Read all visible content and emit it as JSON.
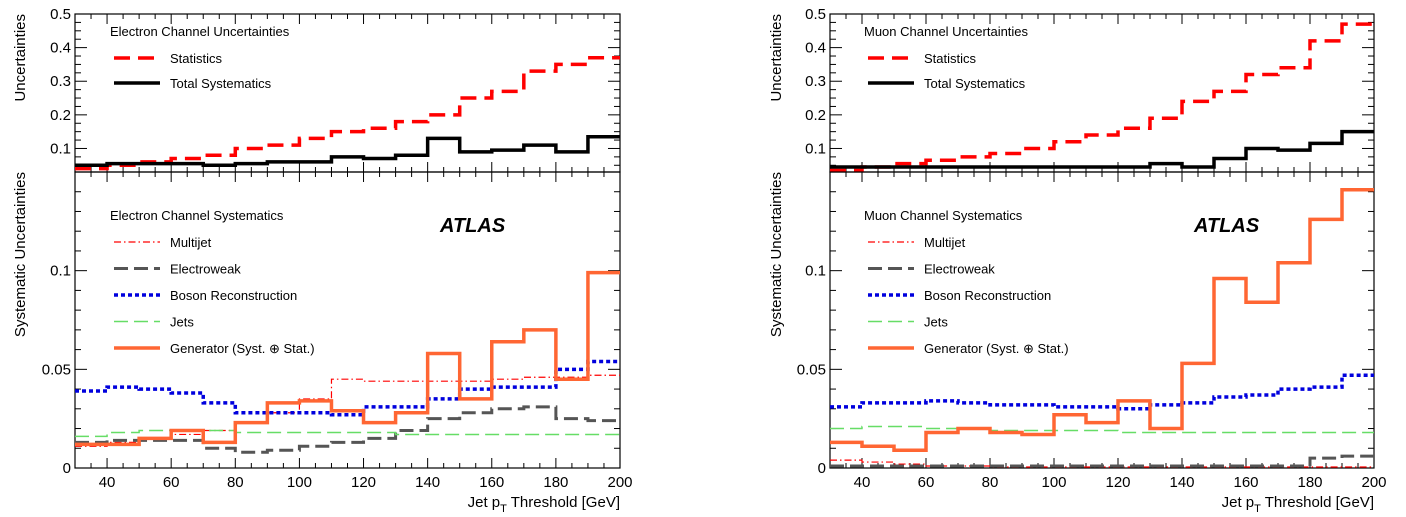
{
  "colors": {
    "statistics": "#ff0000",
    "total_systematics": "#000000",
    "multijet": "#ff0000",
    "electroweak": "#555555",
    "boson": "#0000dd",
    "jets": "#66dd66",
    "generator": "#ff6633"
  },
  "chart_data": [
    {
      "type": "line",
      "panel": "electron-top",
      "ylabel": "Uncertainties",
      "legend_header": "Electron Channel Uncertainties",
      "bin_edges": [
        30,
        40,
        50,
        60,
        70,
        80,
        90,
        100,
        110,
        120,
        130,
        140,
        150,
        160,
        170,
        180,
        190,
        200
      ],
      "ylim": [
        0.03,
        0.5
      ],
      "yticks": [
        0.1,
        0.2,
        0.3,
        0.4,
        0.5
      ],
      "ytick_labels": [
        "0.1",
        "0.2",
        "0.3",
        "0.4",
        "0.5"
      ],
      "series": [
        {
          "name": "Statistics",
          "style": "dashed-thick",
          "color": "#ff0000",
          "values": [
            0.04,
            0.05,
            0.06,
            0.07,
            0.08,
            0.1,
            0.11,
            0.13,
            0.15,
            0.16,
            0.18,
            0.2,
            0.25,
            0.27,
            0.33,
            0.35,
            0.37
          ]
        },
        {
          "name": "Total Systematics",
          "style": "solid-thick",
          "color": "#000000",
          "values": [
            0.05,
            0.055,
            0.055,
            0.055,
            0.05,
            0.055,
            0.06,
            0.06,
            0.075,
            0.07,
            0.08,
            0.13,
            0.09,
            0.095,
            0.11,
            0.09,
            0.135
          ]
        }
      ]
    },
    {
      "type": "line",
      "panel": "electron-bottom",
      "ylabel": "Systematic Uncertainties",
      "xlabel": "Jet p",
      "xlabel_sub": "T",
      "xlabel_suffix": " Threshold [GeV]",
      "legend_header": "Electron Channel Systematics",
      "atlas_label": "ATLAS",
      "bin_edges": [
        30,
        40,
        50,
        60,
        70,
        80,
        90,
        100,
        110,
        120,
        130,
        140,
        150,
        160,
        170,
        180,
        190,
        200
      ],
      "xlim": [
        30,
        200
      ],
      "xticks": [
        40,
        60,
        80,
        100,
        120,
        140,
        160,
        180,
        200
      ],
      "xtick_labels": [
        "40",
        "60",
        "80",
        "100",
        "120",
        "140",
        "160",
        "180",
        "200"
      ],
      "ylim": [
        0,
        0.15
      ],
      "yticks": [
        0,
        0.05,
        0.1
      ],
      "ytick_labels": [
        "0",
        "0.05",
        "0.1"
      ],
      "series": [
        {
          "name": "Multijet",
          "style": "dashdot-thin",
          "color": "#ff0000",
          "values": [
            0.011,
            0.013,
            0.015,
            0.017,
            0.019,
            0.023,
            0.028,
            0.035,
            0.045,
            0.044,
            0.044,
            0.044,
            0.044,
            0.045,
            0.046,
            0.046,
            0.047
          ]
        },
        {
          "name": "Electroweak",
          "style": "longdash",
          "color": "#555555",
          "values": [
            0.013,
            0.014,
            0.014,
            0.014,
            0.01,
            0.008,
            0.009,
            0.011,
            0.013,
            0.015,
            0.019,
            0.025,
            0.028,
            0.03,
            0.031,
            0.025,
            0.024
          ]
        },
        {
          "name": "Boson Reconstruction",
          "style": "dotted-thick",
          "color": "#0000dd",
          "values": [
            0.039,
            0.041,
            0.04,
            0.038,
            0.033,
            0.028,
            0.028,
            0.028,
            0.027,
            0.031,
            0.031,
            0.035,
            0.04,
            0.041,
            0.041,
            0.05,
            0.054
          ]
        },
        {
          "name": "Jets",
          "style": "longdash-thin",
          "color": "#66dd66",
          "values": [
            0.016,
            0.018,
            0.019,
            0.019,
            0.019,
            0.018,
            0.018,
            0.018,
            0.018,
            0.018,
            0.017,
            0.017,
            0.017,
            0.017,
            0.017,
            0.017,
            0.017
          ]
        },
        {
          "name": "Generator (Syst. ⊕ Stat.)",
          "style": "solid-thick",
          "color": "#ff6633",
          "values": [
            0.012,
            0.012,
            0.015,
            0.019,
            0.013,
            0.023,
            0.033,
            0.034,
            0.029,
            0.023,
            0.028,
            0.058,
            0.035,
            0.064,
            0.07,
            0.045,
            0.099
          ]
        }
      ]
    },
    {
      "type": "line",
      "panel": "muon-top",
      "ylabel": "Uncertainties",
      "legend_header": "Muon Channel Uncertainties",
      "bin_edges": [
        30,
        40,
        50,
        60,
        70,
        80,
        90,
        100,
        110,
        120,
        130,
        140,
        150,
        160,
        170,
        180,
        190,
        200
      ],
      "ylim": [
        0.03,
        0.5
      ],
      "yticks": [
        0.1,
        0.2,
        0.3,
        0.4,
        0.5
      ],
      "ytick_labels": [
        "0.1",
        "0.2",
        "0.3",
        "0.4",
        "0.5"
      ],
      "series": [
        {
          "name": "Statistics",
          "style": "dashed-thick",
          "color": "#ff0000",
          "values": [
            0.035,
            0.045,
            0.055,
            0.065,
            0.075,
            0.085,
            0.1,
            0.12,
            0.14,
            0.16,
            0.19,
            0.24,
            0.27,
            0.32,
            0.34,
            0.42,
            0.47
          ]
        },
        {
          "name": "Total Systematics",
          "style": "solid-thick",
          "color": "#000000",
          "values": [
            0.045,
            0.045,
            0.045,
            0.045,
            0.045,
            0.045,
            0.045,
            0.045,
            0.045,
            0.045,
            0.055,
            0.045,
            0.07,
            0.1,
            0.095,
            0.115,
            0.15
          ]
        }
      ]
    },
    {
      "type": "line",
      "panel": "muon-bottom",
      "ylabel": "Systematic Uncertainties",
      "xlabel": "Jet p",
      "xlabel_sub": "T",
      "xlabel_suffix": " Threshold [GeV]",
      "legend_header": "Muon Channel Systematics",
      "atlas_label": "ATLAS",
      "bin_edges": [
        30,
        40,
        50,
        60,
        70,
        80,
        90,
        100,
        110,
        120,
        130,
        140,
        150,
        160,
        170,
        180,
        190,
        200
      ],
      "xlim": [
        30,
        200
      ],
      "xticks": [
        40,
        60,
        80,
        100,
        120,
        140,
        160,
        180,
        200
      ],
      "xtick_labels": [
        "40",
        "60",
        "80",
        "100",
        "120",
        "140",
        "160",
        "180",
        "200"
      ],
      "ylim": [
        0,
        0.15
      ],
      "yticks": [
        0,
        0.05,
        0.1
      ],
      "ytick_labels": [
        "0",
        "0.05",
        "0.1"
      ],
      "series": [
        {
          "name": "Multijet",
          "style": "dashdot-thin",
          "color": "#ff0000",
          "values": [
            0.004,
            0.003,
            0.002,
            0.001,
            0.001,
            0.0005,
            0.0005,
            0.0005,
            0.0005,
            0.0005,
            0.0005,
            0.0005,
            0.0005,
            0.0005,
            0.0005,
            0.0005,
            0.0005
          ]
        },
        {
          "name": "Electroweak",
          "style": "longdash",
          "color": "#555555",
          "values": [
            0.001,
            0.001,
            0.001,
            0.001,
            0.001,
            0.001,
            0.001,
            0.001,
            0.001,
            0.001,
            0.001,
            0.001,
            0.001,
            0.001,
            0.001,
            0.005,
            0.006
          ]
        },
        {
          "name": "Boson Reconstruction",
          "style": "dotted-thick",
          "color": "#0000dd",
          "values": [
            0.031,
            0.033,
            0.033,
            0.034,
            0.033,
            0.032,
            0.032,
            0.031,
            0.031,
            0.03,
            0.032,
            0.033,
            0.036,
            0.037,
            0.04,
            0.041,
            0.047
          ]
        },
        {
          "name": "Jets",
          "style": "longdash-thin",
          "color": "#66dd66",
          "values": [
            0.02,
            0.021,
            0.021,
            0.02,
            0.02,
            0.019,
            0.019,
            0.019,
            0.019,
            0.018,
            0.018,
            0.018,
            0.018,
            0.018,
            0.018,
            0.018,
            0.018
          ]
        },
        {
          "name": "Generator (Syst. ⊕ Stat.)",
          "style": "solid-thick",
          "color": "#ff6633",
          "values": [
            0.013,
            0.011,
            0.009,
            0.018,
            0.02,
            0.018,
            0.017,
            0.027,
            0.023,
            0.034,
            0.02,
            0.053,
            0.096,
            0.084,
            0.104,
            0.126,
            0.141
          ]
        }
      ]
    }
  ]
}
